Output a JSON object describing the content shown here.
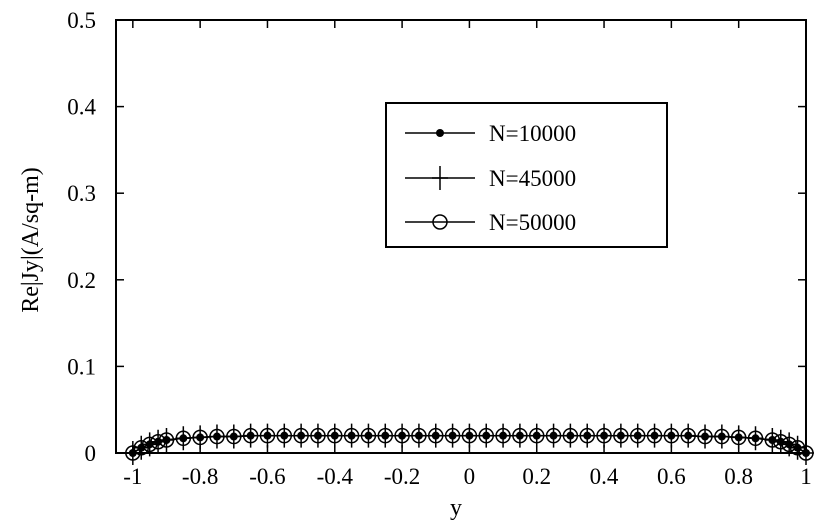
{
  "chart_data": {
    "type": "line",
    "xlabel": "y",
    "ylabel": "Re|Jy|(A/sq-m)",
    "xlim": [
      -1.05,
      1.0
    ],
    "ylim": [
      0,
      0.5
    ],
    "x_ticks": [
      {
        "value": -1,
        "label": "-1"
      },
      {
        "value": -0.8,
        "label": "-0.8"
      },
      {
        "value": -0.6,
        "label": "-0.6"
      },
      {
        "value": -0.4,
        "label": "-0.4"
      },
      {
        "value": -0.2,
        "label": "-0.2"
      },
      {
        "value": 0,
        "label": "0"
      },
      {
        "value": 0.2,
        "label": "0.2"
      },
      {
        "value": 0.4,
        "label": "0.4"
      },
      {
        "value": 0.6,
        "label": "0.6"
      },
      {
        "value": 0.8,
        "label": "0.8"
      },
      {
        "value": 1,
        "label": "1"
      }
    ],
    "y_ticks": [
      {
        "value": 0,
        "label": "0"
      },
      {
        "value": 0.1,
        "label": "0.1"
      },
      {
        "value": 0.2,
        "label": "0.2"
      },
      {
        "value": 0.3,
        "label": "0.3"
      },
      {
        "value": 0.4,
        "label": "0.4"
      },
      {
        "value": 0.5,
        "label": "0.5"
      }
    ],
    "grid": false,
    "legend_position": "upper-right",
    "series": [
      {
        "name": "N=10000",
        "marker": "dot",
        "x": [
          -1.0,
          -0.975,
          -0.95,
          -0.925,
          -0.9,
          -0.85,
          -0.8,
          -0.75,
          -0.7,
          -0.65,
          -0.6,
          -0.55,
          -0.5,
          -0.45,
          -0.4,
          -0.35,
          -0.3,
          -0.25,
          -0.2,
          -0.15,
          -0.1,
          -0.05,
          0.0,
          0.05,
          0.1,
          0.15,
          0.2,
          0.25,
          0.3,
          0.35,
          0.4,
          0.45,
          0.5,
          0.55,
          0.6,
          0.65,
          0.7,
          0.75,
          0.8,
          0.85,
          0.9,
          0.925,
          0.95,
          0.975,
          1.0
        ],
        "y": [
          0.0,
          0.006,
          0.01,
          0.013,
          0.015,
          0.017,
          0.018,
          0.019,
          0.019,
          0.02,
          0.02,
          0.02,
          0.02,
          0.02,
          0.02,
          0.02,
          0.02,
          0.02,
          0.02,
          0.02,
          0.02,
          0.02,
          0.02,
          0.02,
          0.02,
          0.02,
          0.02,
          0.02,
          0.02,
          0.02,
          0.02,
          0.02,
          0.02,
          0.02,
          0.02,
          0.02,
          0.019,
          0.019,
          0.018,
          0.017,
          0.015,
          0.013,
          0.01,
          0.006,
          0.0
        ]
      },
      {
        "name": "N=45000",
        "marker": "plus",
        "x": [
          -1.0,
          -0.975,
          -0.95,
          -0.925,
          -0.9,
          -0.85,
          -0.8,
          -0.75,
          -0.7,
          -0.65,
          -0.6,
          -0.55,
          -0.5,
          -0.45,
          -0.4,
          -0.35,
          -0.3,
          -0.25,
          -0.2,
          -0.15,
          -0.1,
          -0.05,
          0.0,
          0.05,
          0.1,
          0.15,
          0.2,
          0.25,
          0.3,
          0.35,
          0.4,
          0.45,
          0.5,
          0.55,
          0.6,
          0.65,
          0.7,
          0.75,
          0.8,
          0.85,
          0.9,
          0.925,
          0.95,
          0.975,
          1.0
        ],
        "y": [
          0.0,
          0.006,
          0.01,
          0.013,
          0.015,
          0.017,
          0.018,
          0.019,
          0.019,
          0.02,
          0.02,
          0.02,
          0.02,
          0.02,
          0.02,
          0.02,
          0.02,
          0.02,
          0.02,
          0.02,
          0.02,
          0.02,
          0.02,
          0.02,
          0.02,
          0.02,
          0.02,
          0.02,
          0.02,
          0.02,
          0.02,
          0.02,
          0.02,
          0.02,
          0.02,
          0.02,
          0.019,
          0.019,
          0.018,
          0.017,
          0.015,
          0.013,
          0.01,
          0.006,
          0.0
        ]
      },
      {
        "name": "N=50000",
        "marker": "circle",
        "x": [
          -1.0,
          -0.975,
          -0.95,
          -0.925,
          -0.9,
          -0.85,
          -0.8,
          -0.75,
          -0.7,
          -0.65,
          -0.6,
          -0.55,
          -0.5,
          -0.45,
          -0.4,
          -0.35,
          -0.3,
          -0.25,
          -0.2,
          -0.15,
          -0.1,
          -0.05,
          0.0,
          0.05,
          0.1,
          0.15,
          0.2,
          0.25,
          0.3,
          0.35,
          0.4,
          0.45,
          0.5,
          0.55,
          0.6,
          0.65,
          0.7,
          0.75,
          0.8,
          0.85,
          0.9,
          0.925,
          0.95,
          0.975,
          1.0
        ],
        "y": [
          0.0,
          0.006,
          0.01,
          0.013,
          0.015,
          0.017,
          0.018,
          0.019,
          0.019,
          0.02,
          0.02,
          0.02,
          0.02,
          0.02,
          0.02,
          0.02,
          0.02,
          0.02,
          0.02,
          0.02,
          0.02,
          0.02,
          0.02,
          0.02,
          0.02,
          0.02,
          0.02,
          0.02,
          0.02,
          0.02,
          0.02,
          0.02,
          0.02,
          0.02,
          0.02,
          0.02,
          0.019,
          0.019,
          0.018,
          0.017,
          0.015,
          0.013,
          0.01,
          0.006,
          0.0
        ]
      }
    ]
  }
}
